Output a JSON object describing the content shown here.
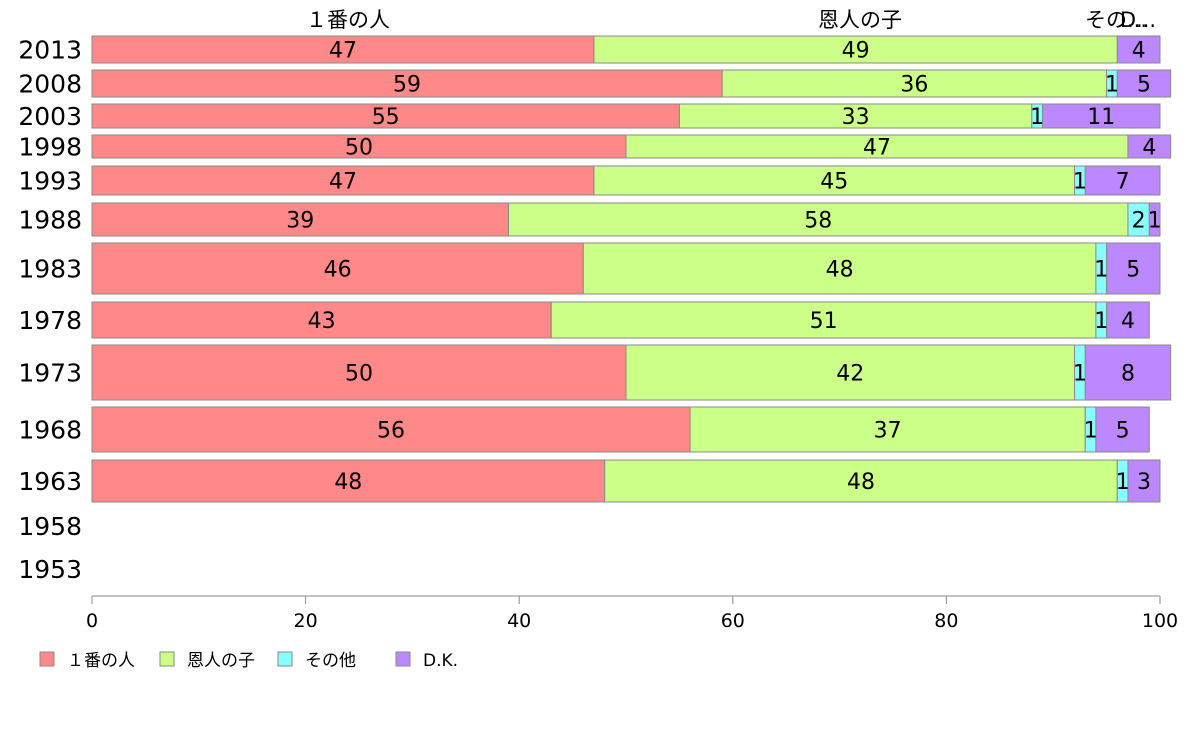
{
  "chart_data": {
    "type": "bar",
    "orientation": "horizontal",
    "stacked": "percent",
    "categories": [
      "2013",
      "2008",
      "2003",
      "1998",
      "1993",
      "1988",
      "1983",
      "1978",
      "1973",
      "1968",
      "1963",
      "1958",
      "1953"
    ],
    "series": [
      {
        "name": "１番の人",
        "color": "#ff8888",
        "values": [
          47,
          59,
          55,
          50,
          47,
          39,
          46,
          43,
          50,
          56,
          48,
          null,
          null
        ]
      },
      {
        "name": "恩人の子",
        "color": "#ccff88",
        "values": [
          49,
          36,
          33,
          47,
          45,
          58,
          48,
          51,
          42,
          37,
          48,
          null,
          null
        ]
      },
      {
        "name": "その他",
        "color": "#88ffff",
        "values": [
          0,
          1,
          1,
          0,
          1,
          2,
          1,
          1,
          1,
          1,
          1,
          null,
          null
        ]
      },
      {
        "name": "D.K.",
        "color": "#bb88ff",
        "values": [
          4,
          5,
          11,
          4,
          7,
          1,
          5,
          4,
          8,
          5,
          3,
          null,
          null
        ]
      }
    ],
    "segment_labels": [
      [
        "47",
        "49",
        "",
        "4"
      ],
      [
        "59",
        "36",
        "1",
        "5"
      ],
      [
        "55",
        "33",
        "1",
        "11"
      ],
      [
        "50",
        "47",
        "",
        "4"
      ],
      [
        "47",
        "45",
        "1",
        "7"
      ],
      [
        "39",
        "58",
        "2",
        "1"
      ],
      [
        "46",
        "48",
        "1",
        "5"
      ],
      [
        "43",
        "51",
        "1",
        "4"
      ],
      [
        "50",
        "42",
        "1",
        "8"
      ],
      [
        "56",
        "37",
        "1",
        "5"
      ],
      [
        "48",
        "48",
        "1",
        "3"
      ],
      [],
      []
    ],
    "top_labels": [
      "１番の人",
      "恩人の子",
      "その...",
      "D..."
    ],
    "xlim": [
      0,
      100
    ],
    "xticks": [
      "0",
      "20",
      "40",
      "60",
      "80",
      "100"
    ],
    "legend_position": "bottom-left",
    "grid": false
  }
}
